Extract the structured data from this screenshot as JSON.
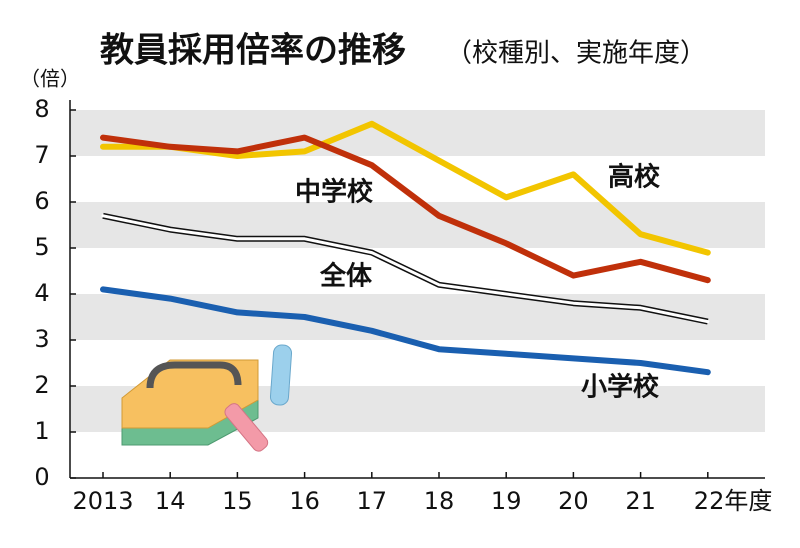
{
  "chart_data": {
    "type": "line",
    "title": "教員採用倍率の推移",
    "subtitle": "（校種別、実施年度）",
    "y_label": "（倍）",
    "categories": [
      "2013",
      "14",
      "15",
      "16",
      "17",
      "18",
      "19",
      "20",
      "21",
      "22年度"
    ],
    "series": [
      {
        "name": "高校",
        "color": "#f2c500",
        "values": [
          7.2,
          7.2,
          7.0,
          7.1,
          7.7,
          6.9,
          6.1,
          6.6,
          5.3,
          4.9
        ]
      },
      {
        "name": "中学校",
        "color": "#c0300a",
        "values": [
          7.4,
          7.2,
          7.1,
          7.4,
          6.8,
          5.7,
          5.1,
          4.4,
          4.7,
          4.3
        ]
      },
      {
        "name": "全体",
        "color": "#ffffff",
        "outline": "#111111",
        "values": [
          5.7,
          5.4,
          5.2,
          5.2,
          4.9,
          4.2,
          4.0,
          3.8,
          3.7,
          3.4
        ]
      },
      {
        "name": "小学校",
        "color": "#1a5fb0",
        "values": [
          4.1,
          3.9,
          3.6,
          3.5,
          3.2,
          2.8,
          2.7,
          2.6,
          2.5,
          2.3
        ]
      }
    ],
    "ylim": [
      0,
      8
    ],
    "yticks": [
      0,
      1,
      2,
      3,
      4,
      5,
      6,
      7,
      8
    ],
    "grid": "bands"
  }
}
